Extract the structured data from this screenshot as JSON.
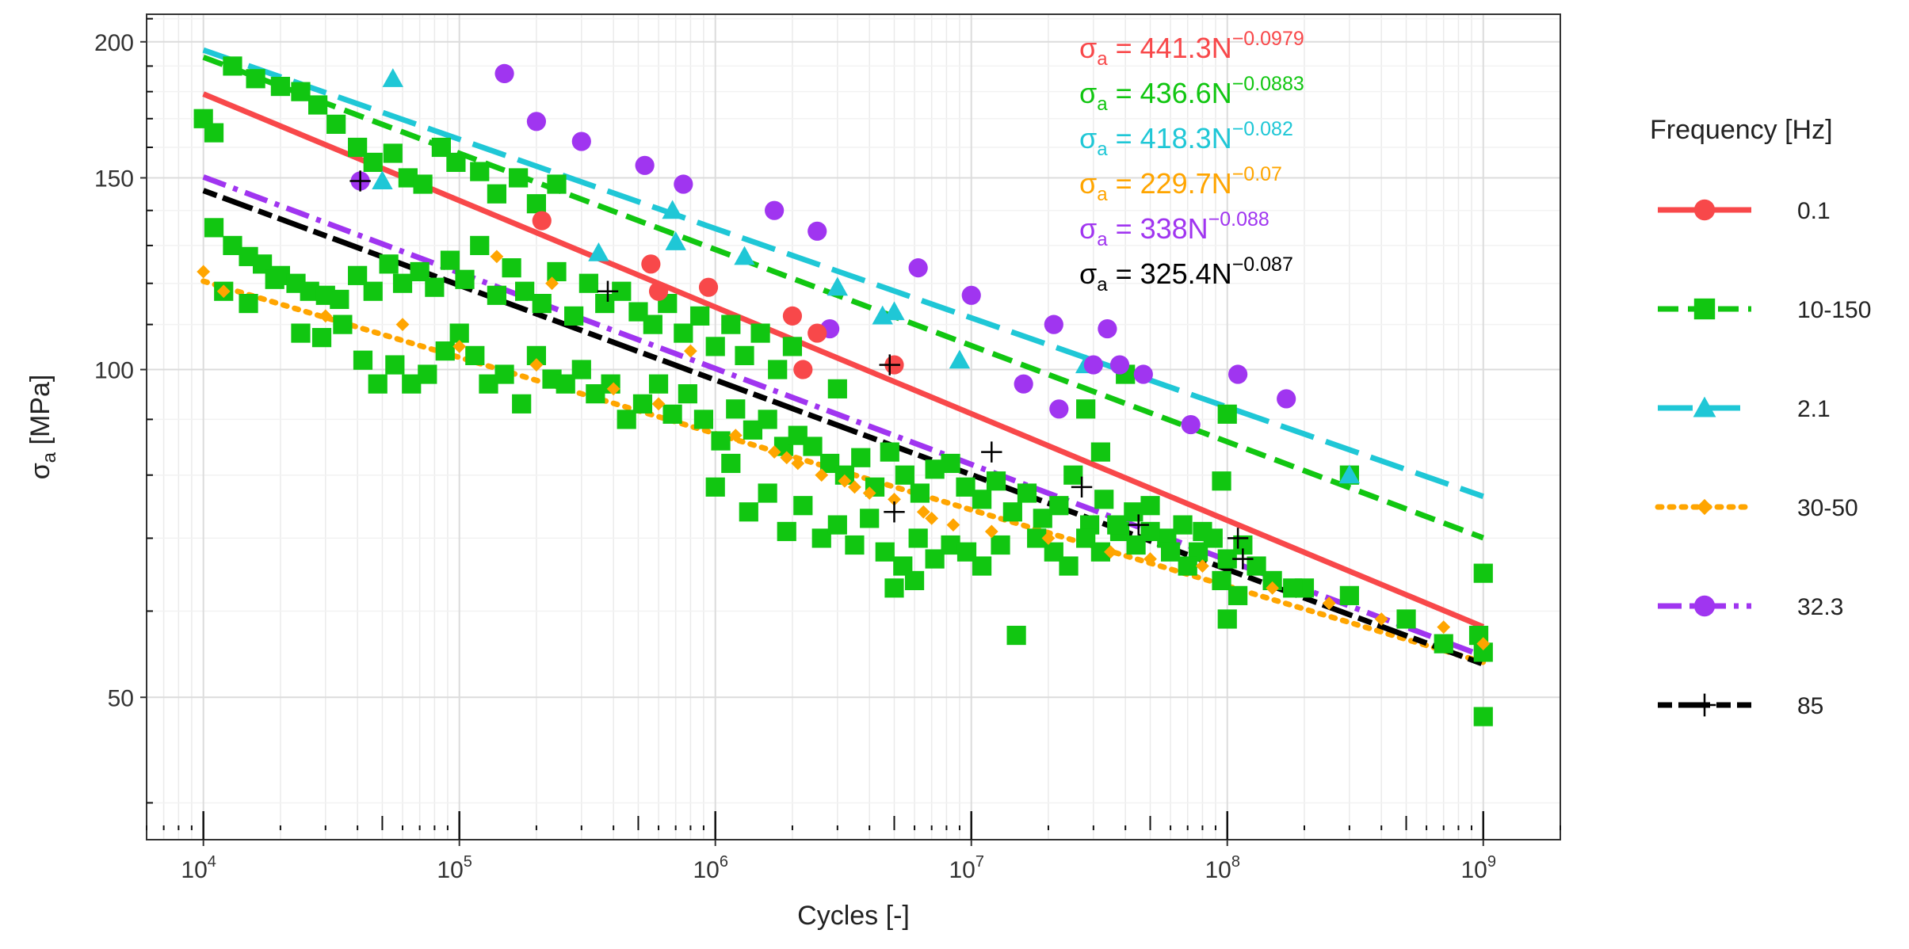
{
  "chart_data": {
    "type": "scatter",
    "scale": "log-log",
    "xlabel": "Cycles [-]",
    "ylabel": {
      "base": "σ",
      "sub": "a",
      "rest": " [MPa]"
    },
    "xlim": [
      6000,
      2000000000
    ],
    "ylim": [
      37,
      212
    ],
    "x_ticks": [
      {
        "value": 10000,
        "base": "10",
        "exp": "4"
      },
      {
        "value": 100000,
        "base": "10",
        "exp": "5"
      },
      {
        "value": 1000000,
        "base": "10",
        "exp": "6"
      },
      {
        "value": 10000000,
        "base": "10",
        "exp": "7"
      },
      {
        "value": 100000000,
        "base": "10",
        "exp": "8"
      },
      {
        "value": 1000000000,
        "base": "10",
        "exp": "9"
      }
    ],
    "y_ticks": [
      {
        "value": 50,
        "label": "50"
      },
      {
        "value": 100,
        "label": "100"
      },
      {
        "value": 150,
        "label": "150"
      },
      {
        "value": 200,
        "label": "200"
      }
    ],
    "legend_title": "Frequency [Hz]",
    "legend_position": "right",
    "grid": true,
    "series": [
      {
        "name": "0.1",
        "color": "#f8484a",
        "marker": "circle",
        "dash": "solid",
        "fit": {
          "a": 441.3,
          "b": -0.0979
        },
        "equation": {
          "sigma": "σ",
          "sub": "a",
          "rhs": " = 441.3N",
          "exp": "−0.0979"
        },
        "points": [
          [
            210000,
            137
          ],
          [
            600000,
            118
          ],
          [
            560000,
            125
          ],
          [
            940000,
            119
          ],
          [
            2200000,
            100
          ],
          [
            2500000,
            108
          ],
          [
            5000000,
            101
          ],
          [
            2000000,
            112
          ]
        ]
      },
      {
        "name": "10-150",
        "color": "#11c611",
        "marker": "square",
        "dash": "dashed",
        "fit": {
          "a": 436.6,
          "b": -0.0883
        },
        "equation": {
          "sigma": "σ",
          "sub": "a",
          "rhs": " = 436.6N",
          "exp": "−0.0883"
        },
        "points": [
          [
            10000,
            170
          ],
          [
            11000,
            165
          ],
          [
            13000,
            190
          ],
          [
            16000,
            185
          ],
          [
            20000,
            182
          ],
          [
            24000,
            180
          ],
          [
            28000,
            175
          ],
          [
            33000,
            168
          ],
          [
            40000,
            160
          ],
          [
            46000,
            155
          ],
          [
            55000,
            158
          ],
          [
            63000,
            150
          ],
          [
            72000,
            148
          ],
          [
            85000,
            160
          ],
          [
            97000,
            155
          ],
          [
            120000,
            152
          ],
          [
            140000,
            145
          ],
          [
            170000,
            150
          ],
          [
            200000,
            142
          ],
          [
            240000,
            148
          ],
          [
            11000,
            135
          ],
          [
            13000,
            130
          ],
          [
            15000,
            127
          ],
          [
            17000,
            125
          ],
          [
            20000,
            122
          ],
          [
            23000,
            120
          ],
          [
            26000,
            118
          ],
          [
            30000,
            117
          ],
          [
            34000,
            116
          ],
          [
            40000,
            122
          ],
          [
            46000,
            118
          ],
          [
            53000,
            125
          ],
          [
            60000,
            120
          ],
          [
            70000,
            123
          ],
          [
            80000,
            119
          ],
          [
            92000,
            126
          ],
          [
            105000,
            121
          ],
          [
            120000,
            130
          ],
          [
            140000,
            117
          ],
          [
            160000,
            124
          ],
          [
            180000,
            118
          ],
          [
            210000,
            115
          ],
          [
            240000,
            123
          ],
          [
            280000,
            112
          ],
          [
            320000,
            120
          ],
          [
            370000,
            115
          ],
          [
            430000,
            118
          ],
          [
            500000,
            113
          ],
          [
            570000,
            110
          ],
          [
            650000,
            115
          ],
          [
            750000,
            108
          ],
          [
            870000,
            112
          ],
          [
            1000000,
            105
          ],
          [
            1150000,
            110
          ],
          [
            1300000,
            103
          ],
          [
            1500000,
            108
          ],
          [
            1750000,
            100
          ],
          [
            2000000,
            105
          ],
          [
            12000,
            118
          ],
          [
            15000,
            115
          ],
          [
            19000,
            121
          ],
          [
            24000,
            108
          ],
          [
            29000,
            107
          ],
          [
            35000,
            110
          ],
          [
            42000,
            102
          ],
          [
            48000,
            97
          ],
          [
            56000,
            101
          ],
          [
            65000,
            97
          ],
          [
            75000,
            99
          ],
          [
            88000,
            104
          ],
          [
            100000,
            108
          ],
          [
            115000,
            103
          ],
          [
            130000,
            97
          ],
          [
            150000,
            99
          ],
          [
            175000,
            93
          ],
          [
            200000,
            103
          ],
          [
            230000,
            98
          ],
          [
            260000,
            97
          ],
          [
            300000,
            100
          ],
          [
            340000,
            95
          ],
          [
            390000,
            97
          ],
          [
            450000,
            90
          ],
          [
            520000,
            93
          ],
          [
            600000,
            97
          ],
          [
            680000,
            91
          ],
          [
            780000,
            95
          ],
          [
            900000,
            90
          ],
          [
            1050000,
            86
          ],
          [
            1200000,
            92
          ],
          [
            1400000,
            88
          ],
          [
            1600000,
            90
          ],
          [
            1850000,
            85
          ],
          [
            2100000,
            87
          ],
          [
            2400000,
            85
          ],
          [
            2800000,
            82
          ],
          [
            3200000,
            80
          ],
          [
            3700000,
            83
          ],
          [
            4200000,
            78
          ],
          [
            4800000,
            84
          ],
          [
            5500000,
            80
          ],
          [
            6300000,
            77
          ],
          [
            7200000,
            81
          ],
          [
            8300000,
            82
          ],
          [
            9500000,
            78
          ],
          [
            11000000,
            76
          ],
          [
            12500000,
            79
          ],
          [
            14500000,
            74
          ],
          [
            16500000,
            77
          ],
          [
            19000000,
            73
          ],
          [
            22000000,
            75
          ],
          [
            25000000,
            80
          ],
          [
            29000000,
            72
          ],
          [
            33000000,
            76
          ],
          [
            38000000,
            71
          ],
          [
            44000000,
            69
          ],
          [
            50000000,
            75
          ],
          [
            58000000,
            70
          ],
          [
            67000000,
            72
          ],
          [
            77000000,
            68
          ],
          [
            88000000,
            70
          ],
          [
            100000000,
            67
          ],
          [
            115000000,
            69
          ],
          [
            130000000,
            66
          ],
          [
            1000000,
            78
          ],
          [
            1150000,
            82
          ],
          [
            1350000,
            74
          ],
          [
            1600000,
            77
          ],
          [
            1900000,
            71
          ],
          [
            2200000,
            75
          ],
          [
            2600000,
            70
          ],
          [
            3000000,
            72
          ],
          [
            3500000,
            69
          ],
          [
            4000000,
            73
          ],
          [
            4600000,
            68
          ],
          [
            5400000,
            66
          ],
          [
            6200000,
            70
          ],
          [
            7200000,
            67
          ],
          [
            8300000,
            69
          ],
          [
            9600000,
            68
          ],
          [
            11000000,
            66
          ],
          [
            13000000,
            69
          ],
          [
            15000000,
            57
          ],
          [
            18000000,
            70
          ],
          [
            21000000,
            68
          ],
          [
            24000000,
            66
          ],
          [
            28000000,
            70
          ],
          [
            32000000,
            68
          ],
          [
            37000000,
            72
          ],
          [
            43000000,
            74
          ],
          [
            50000000,
            71
          ],
          [
            60000000,
            68
          ],
          [
            70000000,
            66
          ],
          [
            80000000,
            71
          ],
          [
            95000000,
            64
          ],
          [
            100000000,
            59
          ],
          [
            110000000,
            62
          ],
          [
            150000000,
            64
          ],
          [
            200000000,
            63
          ],
          [
            300000000,
            62
          ],
          [
            500000000,
            59
          ],
          [
            700000000,
            56
          ],
          [
            960000000,
            57
          ],
          [
            1000000000,
            55
          ],
          [
            1000000000,
            65
          ],
          [
            1000000000,
            48
          ],
          [
            95000000,
            79
          ],
          [
            100000000,
            91
          ],
          [
            180000000,
            63
          ],
          [
            300000000,
            80
          ],
          [
            5000000,
            63
          ],
          [
            6000000,
            64
          ],
          [
            28000000,
            92
          ],
          [
            32000000,
            84
          ],
          [
            40000000,
            99
          ],
          [
            3000000,
            96
          ]
        ]
      },
      {
        "name": "2.1",
        "color": "#1fc7d6",
        "marker": "triangle",
        "dash": "longdash",
        "fit": {
          "a": 418.3,
          "b": -0.082
        },
        "equation": {
          "sigma": "σ",
          "sub": "a",
          "rhs": " = 418.3N",
          "exp": "−0.082"
        },
        "points": [
          [
            55000,
            185
          ],
          [
            50000,
            149
          ],
          [
            350000,
            128
          ],
          [
            680000,
            140
          ],
          [
            1300000,
            127
          ],
          [
            700000,
            131
          ],
          [
            3000000,
            119
          ],
          [
            4500000,
            112
          ],
          [
            5000000,
            113
          ],
          [
            9000000,
            102
          ],
          [
            28000000,
            101
          ],
          [
            300000000,
            80
          ]
        ]
      },
      {
        "name": "30-50",
        "color": "#ffa500",
        "marker": "diamond",
        "dash": "dotted",
        "fit": {
          "a": 229.7,
          "b": -0.07
        },
        "equation": {
          "sigma": "σ",
          "sub": "a",
          "rhs": " = 229.7N",
          "exp": "−0.07"
        },
        "points": [
          [
            10000,
            123
          ],
          [
            140000,
            127
          ],
          [
            230000,
            120
          ],
          [
            800000,
            104
          ],
          [
            1700000,
            84
          ],
          [
            2100000,
            82
          ],
          [
            2600000,
            80
          ],
          [
            3200000,
            79
          ],
          [
            4000000,
            77
          ],
          [
            5000000,
            76
          ],
          [
            6500000,
            74
          ],
          [
            8500000,
            72
          ],
          [
            12000,
            118
          ],
          [
            30000,
            112
          ],
          [
            60000,
            110
          ],
          [
            100000,
            105
          ],
          [
            200000,
            101
          ],
          [
            400000,
            96
          ],
          [
            600000,
            93
          ],
          [
            1200000,
            87
          ],
          [
            1900000,
            83
          ],
          [
            3500000,
            78
          ],
          [
            7000000,
            73
          ],
          [
            12000000,
            71
          ],
          [
            20000000,
            70
          ],
          [
            35000000,
            68
          ],
          [
            50000000,
            67
          ],
          [
            80000000,
            66
          ],
          [
            150000000,
            63
          ],
          [
            250000000,
            61
          ],
          [
            400000000,
            59
          ],
          [
            700000000,
            58
          ],
          [
            1000000000,
            56
          ]
        ]
      },
      {
        "name": "32.3",
        "color": "#a035f0",
        "marker": "circle",
        "dash": "dotdash",
        "fit": {
          "a": 338,
          "b": -0.088
        },
        "equation": {
          "sigma": "σ",
          "sub": "a",
          "rhs": " = 338N",
          "exp": "−0.088"
        },
        "points": [
          [
            41000,
            149
          ],
          [
            150000,
            187
          ],
          [
            200000,
            169
          ],
          [
            300000,
            162
          ],
          [
            530000,
            154
          ],
          [
            750000,
            148
          ],
          [
            1700000,
            140
          ],
          [
            2500000,
            134
          ],
          [
            6200000,
            124
          ],
          [
            10000000,
            117
          ],
          [
            2800000,
            109
          ],
          [
            21000000,
            110
          ],
          [
            34000000,
            109
          ],
          [
            16000000,
            97
          ],
          [
            22000000,
            92
          ],
          [
            30000000,
            101
          ],
          [
            38000000,
            101
          ],
          [
            47000000,
            99
          ],
          [
            72000000,
            89
          ],
          [
            110000000,
            99
          ],
          [
            170000000,
            94
          ]
        ]
      },
      {
        "name": "85",
        "color": "#000000",
        "marker": "cross",
        "dash": "twodash",
        "fit": {
          "a": 325.4,
          "b": -0.087
        },
        "equation": {
          "sigma": "σ",
          "sub": "a",
          "rhs": " = 325.4N",
          "exp": "−0.087"
        },
        "points": [
          [
            41000,
            149
          ],
          [
            380000,
            118
          ],
          [
            4800000,
            101
          ],
          [
            5000000,
            74
          ],
          [
            12000000,
            84
          ],
          [
            27000000,
            78
          ],
          [
            45000000,
            72
          ],
          [
            110000000,
            70
          ],
          [
            115000000,
            67
          ]
        ]
      }
    ]
  }
}
